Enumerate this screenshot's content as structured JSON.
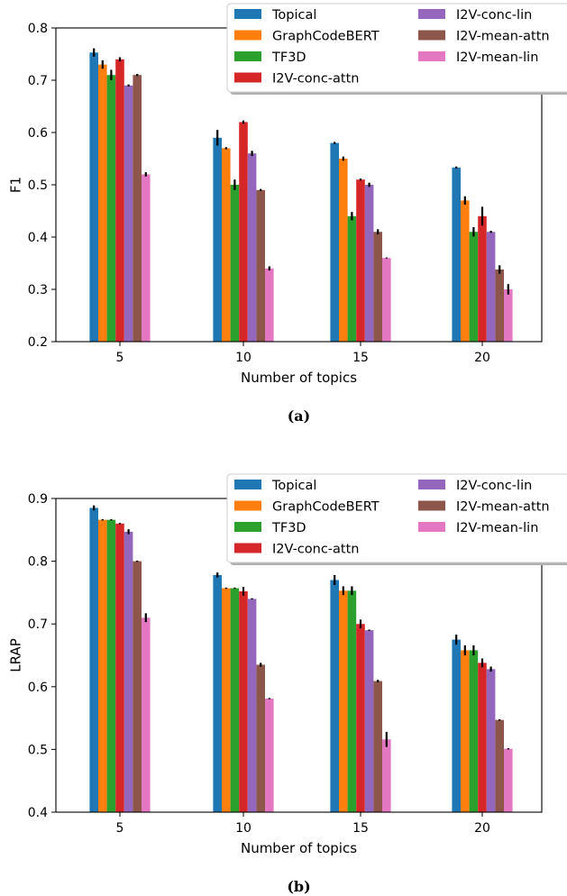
{
  "chart_data": [
    {
      "type": "bar",
      "caption": "(a)",
      "xlabel": "Number of topics",
      "ylabel": "F1",
      "categories": [
        "5",
        "10",
        "15",
        "20"
      ],
      "ylim": [
        0.2,
        0.8
      ],
      "yticks": [
        "0.2",
        "0.3",
        "0.4",
        "0.5",
        "0.6",
        "0.7",
        "0.8"
      ],
      "grid": false,
      "legend_position": "top-right",
      "series": [
        {
          "name": "Topical",
          "color": "#1f77b4",
          "values": [
            0.753,
            0.59,
            0.58,
            0.533
          ],
          "errors": [
            0.008,
            0.015,
            0.002,
            0.002
          ]
        },
        {
          "name": "GraphCodeBERT",
          "color": "#ff7f0e",
          "values": [
            0.73,
            0.57,
            0.55,
            0.47
          ],
          "errors": [
            0.008,
            0.002,
            0.004,
            0.008
          ]
        },
        {
          "name": "TF3D",
          "color": "#2ca02c",
          "values": [
            0.71,
            0.5,
            0.44,
            0.41
          ],
          "errors": [
            0.01,
            0.01,
            0.008,
            0.009
          ]
        },
        {
          "name": "I2V-conc-attn",
          "color": "#d62728",
          "values": [
            0.74,
            0.62,
            0.51,
            0.44
          ],
          "errors": [
            0.004,
            0.003,
            0.002,
            0.018
          ]
        },
        {
          "name": "I2V-conc-lin",
          "color": "#9467bd",
          "values": [
            0.69,
            0.56,
            0.5,
            0.41
          ],
          "errors": [
            0.002,
            0.005,
            0.004,
            0.002
          ]
        },
        {
          "name": "I2V-mean-attn",
          "color": "#8c564b",
          "values": [
            0.71,
            0.49,
            0.41,
            0.338
          ],
          "errors": [
            0.002,
            0.002,
            0.005,
            0.008
          ]
        },
        {
          "name": "I2V-mean-lin",
          "color": "#e377c2",
          "values": [
            0.52,
            0.34,
            0.36,
            0.3
          ],
          "errors": [
            0.004,
            0.004,
            0.001,
            0.01
          ]
        }
      ]
    },
    {
      "type": "bar",
      "caption": "(b)",
      "xlabel": "Number of topics",
      "ylabel": "LRAP",
      "categories": [
        "5",
        "10",
        "15",
        "20"
      ],
      "ylim": [
        0.4,
        0.9
      ],
      "yticks": [
        "0.4",
        "0.5",
        "0.6",
        "0.7",
        "0.8",
        "0.9"
      ],
      "grid": false,
      "legend_position": "top-right",
      "series": [
        {
          "name": "Topical",
          "color": "#1f77b4",
          "values": [
            0.885,
            0.778,
            0.77,
            0.675
          ],
          "errors": [
            0.004,
            0.004,
            0.008,
            0.008
          ]
        },
        {
          "name": "GraphCodeBERT",
          "color": "#ff7f0e",
          "values": [
            0.866,
            0.757,
            0.753,
            0.658
          ],
          "errors": [
            0.001,
            0.001,
            0.007,
            0.008
          ]
        },
        {
          "name": "TF3D",
          "color": "#2ca02c",
          "values": [
            0.866,
            0.757,
            0.753,
            0.658
          ],
          "errors": [
            0.001,
            0.001,
            0.007,
            0.008
          ]
        },
        {
          "name": "I2V-conc-attn",
          "color": "#d62728",
          "values": [
            0.86,
            0.752,
            0.7,
            0.638
          ],
          "errors": [
            0.001,
            0.007,
            0.007,
            0.007
          ]
        },
        {
          "name": "I2V-conc-lin",
          "color": "#9467bd",
          "values": [
            0.847,
            0.74,
            0.69,
            0.628
          ],
          "errors": [
            0.004,
            0.001,
            0.001,
            0.004
          ]
        },
        {
          "name": "I2V-mean-attn",
          "color": "#8c564b",
          "values": [
            0.8,
            0.635,
            0.609,
            0.547
          ],
          "errors": [
            0.001,
            0.003,
            0.002,
            0.001
          ]
        },
        {
          "name": "I2V-mean-lin",
          "color": "#e377c2",
          "values": [
            0.71,
            0.581,
            0.516,
            0.501
          ],
          "errors": [
            0.007,
            0.001,
            0.012,
            0.001
          ]
        }
      ]
    }
  ]
}
